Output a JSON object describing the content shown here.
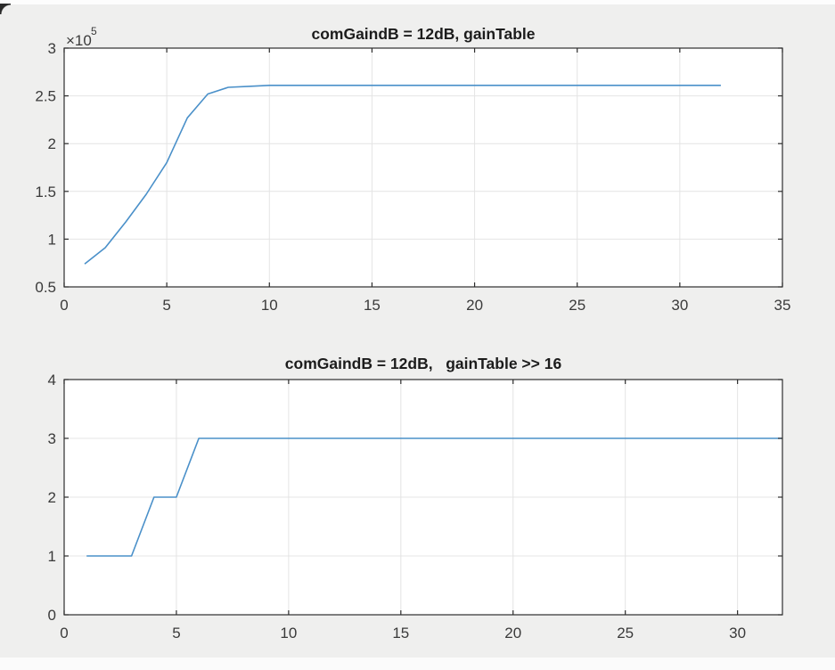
{
  "figure": {
    "background_color": "#efefee",
    "plot_background_color": "#ffffff",
    "grid_color": "#e4e4e4",
    "axis_color": "#2d2d2d",
    "tick_label_color": "#3a3a3a",
    "line_color": "#4a90c9"
  },
  "chart_data": [
    {
      "type": "line",
      "title": "comGaindB = 12dB, gainTable",
      "exponent_base": "×10",
      "exponent_power": "5",
      "xlabel": "",
      "ylabel": "",
      "xlim": [
        0,
        35
      ],
      "ylim": [
        0.5,
        3
      ],
      "grid": true,
      "xticks": [
        0,
        5,
        10,
        15,
        20,
        25,
        30,
        35
      ],
      "xtick_labels": [
        "0",
        "5",
        "10",
        "15",
        "20",
        "25",
        "30",
        "35"
      ],
      "yticks": [
        0.5,
        1,
        1.5,
        2,
        2.5,
        3
      ],
      "ytick_labels": [
        "0.5",
        "1",
        "1.5",
        "2",
        "2.5",
        "3"
      ],
      "y_unit_note": "values in units of 1e5",
      "x": [
        1,
        2,
        3,
        4,
        5,
        6,
        7,
        8,
        9,
        10,
        11,
        12,
        13,
        14,
        15,
        16,
        17,
        18,
        19,
        20,
        21,
        22,
        23,
        24,
        25,
        26,
        27,
        28,
        29,
        30,
        31,
        32
      ],
      "y": [
        0.74,
        0.91,
        1.18,
        1.47,
        1.8,
        2.27,
        2.52,
        2.59,
        2.6,
        2.61,
        2.61,
        2.61,
        2.61,
        2.61,
        2.61,
        2.61,
        2.61,
        2.61,
        2.61,
        2.61,
        2.61,
        2.61,
        2.61,
        2.61,
        2.61,
        2.61,
        2.61,
        2.61,
        2.61,
        2.61,
        2.61,
        2.61
      ]
    },
    {
      "type": "line",
      "title": "comGaindB = 12dB,   gainTable >> 16",
      "exponent_base": "",
      "exponent_power": "",
      "xlabel": "",
      "ylabel": "",
      "xlim": [
        0,
        32
      ],
      "ylim": [
        0,
        4
      ],
      "grid": true,
      "xticks": [
        0,
        5,
        10,
        15,
        20,
        25,
        30
      ],
      "xtick_labels": [
        "0",
        "5",
        "10",
        "15",
        "20",
        "25",
        "30"
      ],
      "yticks": [
        0,
        1,
        2,
        3,
        4
      ],
      "ytick_labels": [
        "0",
        "1",
        "2",
        "3",
        "4"
      ],
      "x": [
        1,
        2,
        3,
        4,
        5,
        6,
        7,
        8,
        9,
        10,
        11,
        12,
        13,
        14,
        15,
        16,
        17,
        18,
        19,
        20,
        21,
        22,
        23,
        24,
        25,
        26,
        27,
        28,
        29,
        30,
        31,
        32
      ],
      "y": [
        1,
        1,
        1,
        2,
        2,
        3,
        3,
        3,
        3,
        3,
        3,
        3,
        3,
        3,
        3,
        3,
        3,
        3,
        3,
        3,
        3,
        3,
        3,
        3,
        3,
        3,
        3,
        3,
        3,
        3,
        3,
        3
      ]
    }
  ]
}
